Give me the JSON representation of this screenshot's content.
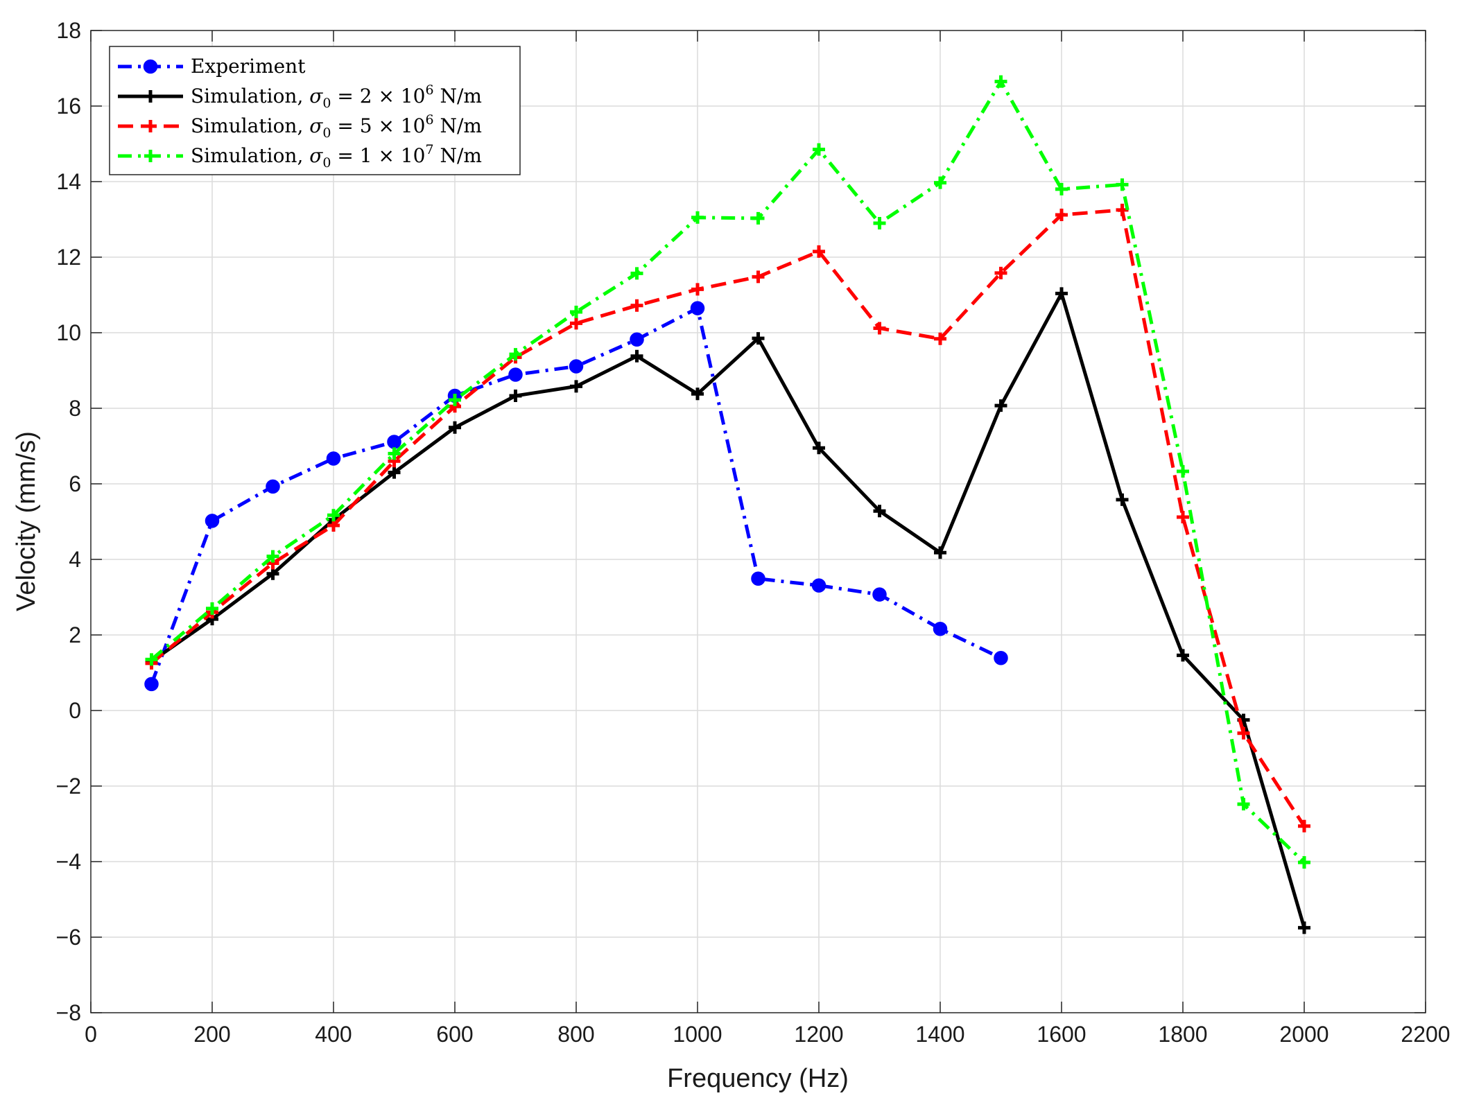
{
  "chart_data": {
    "type": "line",
    "title": "",
    "xlabel": "Frequency (Hz)",
    "ylabel": "Velocity (mm/s)",
    "xlim": [
      0,
      2200
    ],
    "ylim": [
      -8,
      18
    ],
    "xticks": [
      0,
      200,
      400,
      600,
      800,
      1000,
      1200,
      1400,
      1600,
      1800,
      2000,
      2200
    ],
    "yticks": [
      -8,
      -6,
      -4,
      -2,
      0,
      2,
      4,
      6,
      8,
      10,
      12,
      14,
      16,
      18
    ],
    "xtick_labels": [
      "0",
      "200",
      "400",
      "600",
      "800",
      "1000",
      "1200",
      "1400",
      "1600",
      "1800",
      "2000",
      "2200"
    ],
    "ytick_labels": [
      "−8",
      "−6",
      "−4",
      "−2",
      "0",
      "2",
      "4",
      "6",
      "8",
      "10",
      "12",
      "14",
      "16",
      "18"
    ],
    "grid": true,
    "legend_position": "top-left",
    "series": [
      {
        "name": "Experiment",
        "legend_parts": {
          "prefix": "Experiment",
          "sigma": "",
          "rest": "",
          "exp": "",
          "unit": ""
        },
        "color": "#0000ff",
        "line_style": "dashdot",
        "marker": "circle",
        "x": [
          100,
          200,
          300,
          400,
          500,
          600,
          700,
          800,
          900,
          1000,
          1100,
          1200,
          1300,
          1400,
          1500
        ],
        "y": [
          0.7,
          5.02,
          5.93,
          6.67,
          7.11,
          8.33,
          8.89,
          9.11,
          9.82,
          10.65,
          3.49,
          3.31,
          3.07,
          2.16,
          1.39
        ]
      },
      {
        "name": "Simulation, σ0 = 2 × 10^6 N/m",
        "legend_parts": {
          "prefix": "Simulation, ",
          "sigma": "σ",
          "rest": " = 2 × 10",
          "exp": "6",
          "unit": " N/m"
        },
        "color": "#000000",
        "line_style": "solid",
        "marker": "plus",
        "x": [
          100,
          200,
          300,
          400,
          500,
          600,
          700,
          800,
          900,
          1000,
          1100,
          1200,
          1300,
          1400,
          1500,
          1600,
          1700,
          1800,
          1900,
          2000
        ],
        "y": [
          1.3,
          2.42,
          3.62,
          5.05,
          6.3,
          7.49,
          8.33,
          8.58,
          9.38,
          8.38,
          9.85,
          6.95,
          5.28,
          4.18,
          8.07,
          11.04,
          5.58,
          1.46,
          -0.25,
          -5.75
        ]
      },
      {
        "name": "Simulation, σ0 = 5 × 10^6 N/m",
        "legend_parts": {
          "prefix": "Simulation, ",
          "sigma": "σ",
          "rest": " = 5 × 10",
          "exp": "6",
          "unit": " N/m"
        },
        "color": "#ff0000",
        "line_style": "dashed",
        "marker": "plus",
        "x": [
          100,
          200,
          300,
          400,
          500,
          600,
          700,
          800,
          900,
          1000,
          1100,
          1200,
          1300,
          1400,
          1500,
          1600,
          1700,
          1800,
          1900,
          2000
        ],
        "y": [
          1.25,
          2.6,
          3.9,
          4.9,
          6.6,
          8.05,
          9.35,
          10.25,
          10.72,
          11.15,
          11.48,
          12.15,
          10.12,
          9.84,
          11.58,
          13.12,
          13.25,
          5.12,
          -0.6,
          -3.06
        ]
      },
      {
        "name": "Simulation, σ0 = 1 × 10^7 N/m",
        "legend_parts": {
          "prefix": "Simulation, ",
          "sigma": "σ",
          "rest": " = 1 × 10",
          "exp": "7",
          "unit": " N/m"
        },
        "color": "#00ff00",
        "line_style": "dashdot",
        "marker": "plus",
        "x": [
          100,
          200,
          300,
          400,
          500,
          600,
          700,
          800,
          900,
          1000,
          1100,
          1200,
          1300,
          1400,
          1500,
          1600,
          1700,
          1800,
          1900,
          2000
        ],
        "y": [
          1.35,
          2.7,
          4.08,
          5.17,
          6.8,
          8.22,
          9.43,
          10.55,
          11.57,
          13.05,
          13.03,
          14.85,
          12.9,
          13.97,
          16.65,
          13.8,
          13.92,
          6.33,
          -2.48,
          -4.02
        ]
      }
    ]
  }
}
